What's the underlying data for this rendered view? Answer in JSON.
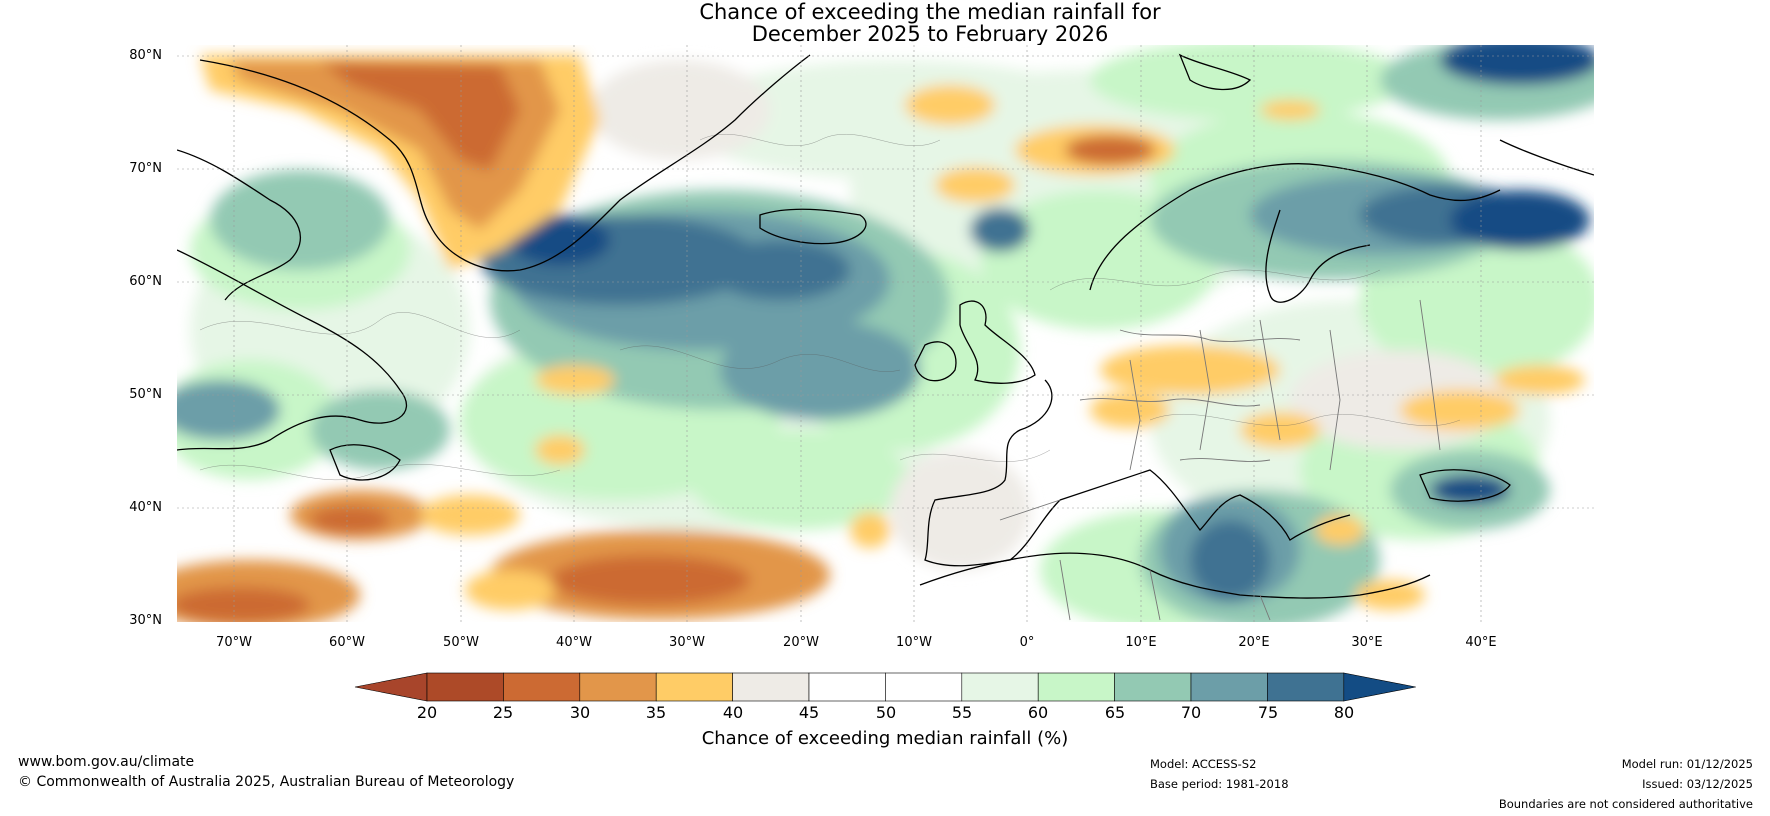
{
  "title": {
    "line1": "Chance of exceeding the median rainfall for",
    "line2": "December 2025 to February 2026"
  },
  "map": {
    "region": "North Atlantic and Europe",
    "lat_labels": [
      "80°N",
      "70°N",
      "60°N",
      "50°N",
      "40°N",
      "30°N"
    ],
    "lon_labels": [
      "70°W",
      "60°W",
      "50°W",
      "40°W",
      "30°W",
      "20°W",
      "10°W",
      "0°",
      "10°E",
      "20°E",
      "30°E",
      "40°E"
    ],
    "bounds": {
      "lon_min": -75,
      "lon_max": 50,
      "lat_min": 30,
      "lat_max": 81
    }
  },
  "colorbar": {
    "label": "Chance of exceeding median rainfall (%)",
    "ticks": [
      "20",
      "25",
      "30",
      "35",
      "40",
      "45",
      "50",
      "55",
      "60",
      "65",
      "70",
      "75",
      "80"
    ],
    "colors": [
      "#a8452b",
      "#ad4a28",
      "#cc6a33",
      "#e2964a",
      "#ffcc66",
      "#eeebe6",
      "#ffffff",
      "#ffffff",
      "#e6f6e6",
      "#c8f6c8",
      "#93c9b3",
      "#6c9ea8",
      "#3f7292",
      "#134c84"
    ]
  },
  "footer": {
    "website": "www.bom.gov.au/climate",
    "copyright": "© Commonwealth of Australia 2025, Australian Bureau of Meteorology",
    "model": "Model: ACCESS-S2",
    "base_period": "Base period: 1981-2018",
    "model_run": "Model run: 01/12/2025",
    "issued": "Issued: 03/12/2025",
    "disclaimer": "Boundaries are not considered authoritative"
  }
}
